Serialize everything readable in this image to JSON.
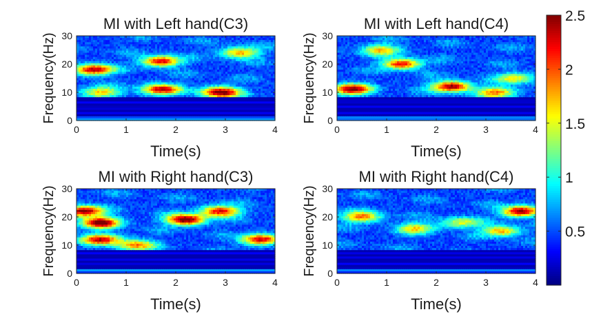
{
  "chart_data": [
    {
      "type": "heatmap",
      "title": "MI with Left hand(C3)",
      "xlabel": "Time(s)",
      "ylabel": "Frequency(Hz)",
      "xlim": [
        0,
        4
      ],
      "ylim": [
        0,
        30
      ],
      "xticks": [
        0,
        1,
        2,
        3,
        4
      ],
      "yticks": [
        0,
        10,
        20,
        30
      ],
      "hotspots": [
        {
          "t": 0.35,
          "f": 18,
          "v": 1.9
        },
        {
          "t": 1.7,
          "f": 21,
          "v": 1.8
        },
        {
          "t": 1.7,
          "f": 11,
          "v": 1.8
        },
        {
          "t": 2.9,
          "f": 10,
          "v": 2.1
        },
        {
          "t": 3.3,
          "f": 24,
          "v": 1.3
        },
        {
          "t": 0.5,
          "f": 10,
          "v": 1.2
        }
      ]
    },
    {
      "type": "heatmap",
      "title": "MI with Left hand(C4)",
      "xlabel": "Time(s)",
      "ylabel": "Frequency(Hz)",
      "xlim": [
        0,
        4
      ],
      "ylim": [
        0,
        30
      ],
      "xticks": [
        0,
        1,
        2,
        3,
        4
      ],
      "yticks": [
        0,
        10,
        20,
        30
      ],
      "hotspots": [
        {
          "t": 0.3,
          "f": 11,
          "v": 2.0
        },
        {
          "t": 1.3,
          "f": 20,
          "v": 1.7
        },
        {
          "t": 2.3,
          "f": 12,
          "v": 2.0
        },
        {
          "t": 3.2,
          "f": 10,
          "v": 1.4
        },
        {
          "t": 0.9,
          "f": 25,
          "v": 1.2
        },
        {
          "t": 3.6,
          "f": 15,
          "v": 1.1
        }
      ]
    },
    {
      "type": "heatmap",
      "title": "MI with Right hand(C3)",
      "xlabel": "Time(s)",
      "ylabel": "Frequency(Hz)",
      "xlim": [
        0,
        4
      ],
      "ylim": [
        0,
        30
      ],
      "xticks": [
        0,
        1,
        2,
        3,
        4
      ],
      "yticks": [
        0,
        10,
        20,
        30
      ],
      "hotspots": [
        {
          "t": 0.15,
          "f": 22,
          "v": 2.0
        },
        {
          "t": 0.5,
          "f": 18,
          "v": 2.1
        },
        {
          "t": 0.5,
          "f": 12,
          "v": 1.8
        },
        {
          "t": 2.2,
          "f": 19,
          "v": 2.2
        },
        {
          "t": 2.9,
          "f": 22,
          "v": 1.8
        },
        {
          "t": 3.7,
          "f": 12,
          "v": 1.8
        },
        {
          "t": 1.2,
          "f": 10,
          "v": 1.3
        }
      ]
    },
    {
      "type": "heatmap",
      "title": "MI with Right hand(C4)",
      "xlabel": "Time(s)",
      "ylabel": "Frequency(Hz)",
      "xlim": [
        0,
        4
      ],
      "ylim": [
        0,
        30
      ],
      "xticks": [
        0,
        1,
        2,
        3,
        4
      ],
      "yticks": [
        0,
        10,
        20,
        30
      ],
      "hotspots": [
        {
          "t": 0.5,
          "f": 20,
          "v": 1.4
        },
        {
          "t": 3.7,
          "f": 22,
          "v": 2.0
        },
        {
          "t": 3.3,
          "f": 15,
          "v": 1.3
        },
        {
          "t": 1.6,
          "f": 16,
          "v": 1.1
        },
        {
          "t": 2.5,
          "f": 18,
          "v": 1.0
        }
      ]
    }
  ],
  "colorbar": {
    "colormap": "jet",
    "range": [
      0,
      2.5
    ],
    "ticks": [
      0.5,
      1,
      1.5,
      2,
      2.5
    ],
    "tick_labels": [
      "0.5",
      "1",
      "1.5",
      "2",
      "2.5"
    ]
  }
}
